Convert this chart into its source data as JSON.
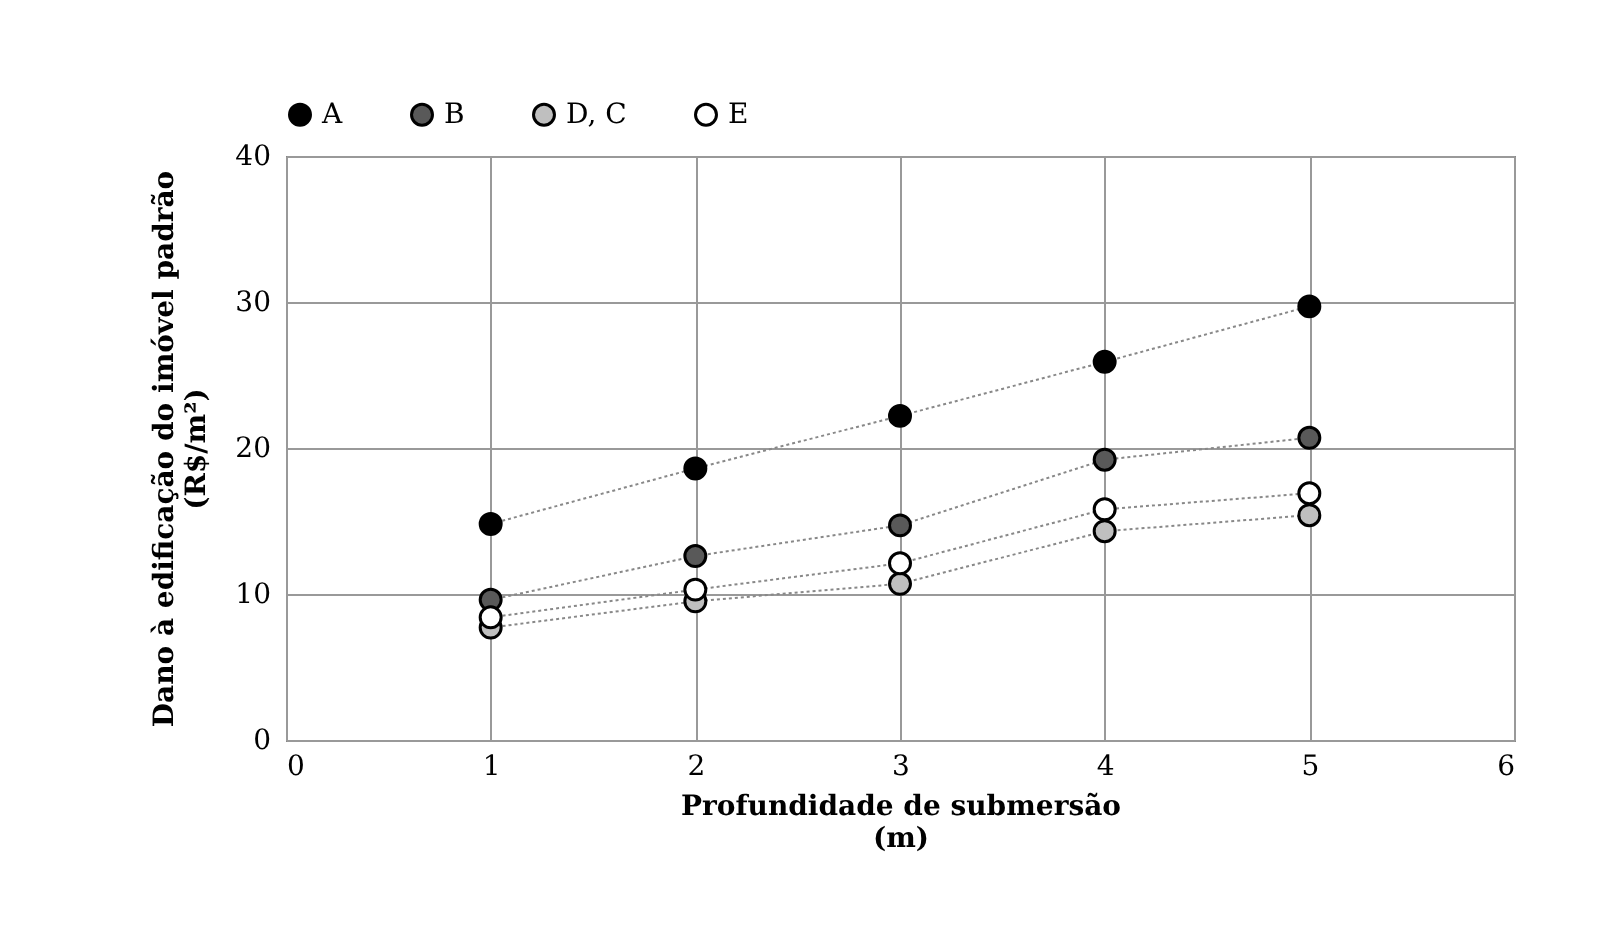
{
  "chart_data": {
    "type": "line",
    "xlabel": "Profundidade de submersão\n(m)",
    "ylabel": "Dano à edificação do imóvel padrão\n(R$/m²)",
    "x": [
      1,
      2,
      3,
      4,
      5
    ],
    "series": [
      {
        "name": "A",
        "color": "#000000",
        "values": [
          14.8,
          18.6,
          22.2,
          25.9,
          29.7
        ]
      },
      {
        "name": "B",
        "color": "#595959",
        "values": [
          9.6,
          12.6,
          14.7,
          19.2,
          20.7
        ]
      },
      {
        "name": "D, C",
        "color": "#bfbfbf",
        "values": [
          7.7,
          9.5,
          10.7,
          14.3,
          15.4
        ]
      },
      {
        "name": "E",
        "color": "#ffffff",
        "values": [
          8.4,
          10.3,
          12.1,
          15.8,
          16.9
        ]
      }
    ],
    "xlim": [
      0,
      6
    ],
    "xticks": [
      0,
      1,
      2,
      3,
      4,
      5,
      6
    ],
    "ylim": [
      0,
      40
    ],
    "yticks": [
      0,
      10,
      20,
      30,
      40
    ],
    "grid": true,
    "legend": "top",
    "marker": "circle",
    "line_style": "dotted"
  }
}
